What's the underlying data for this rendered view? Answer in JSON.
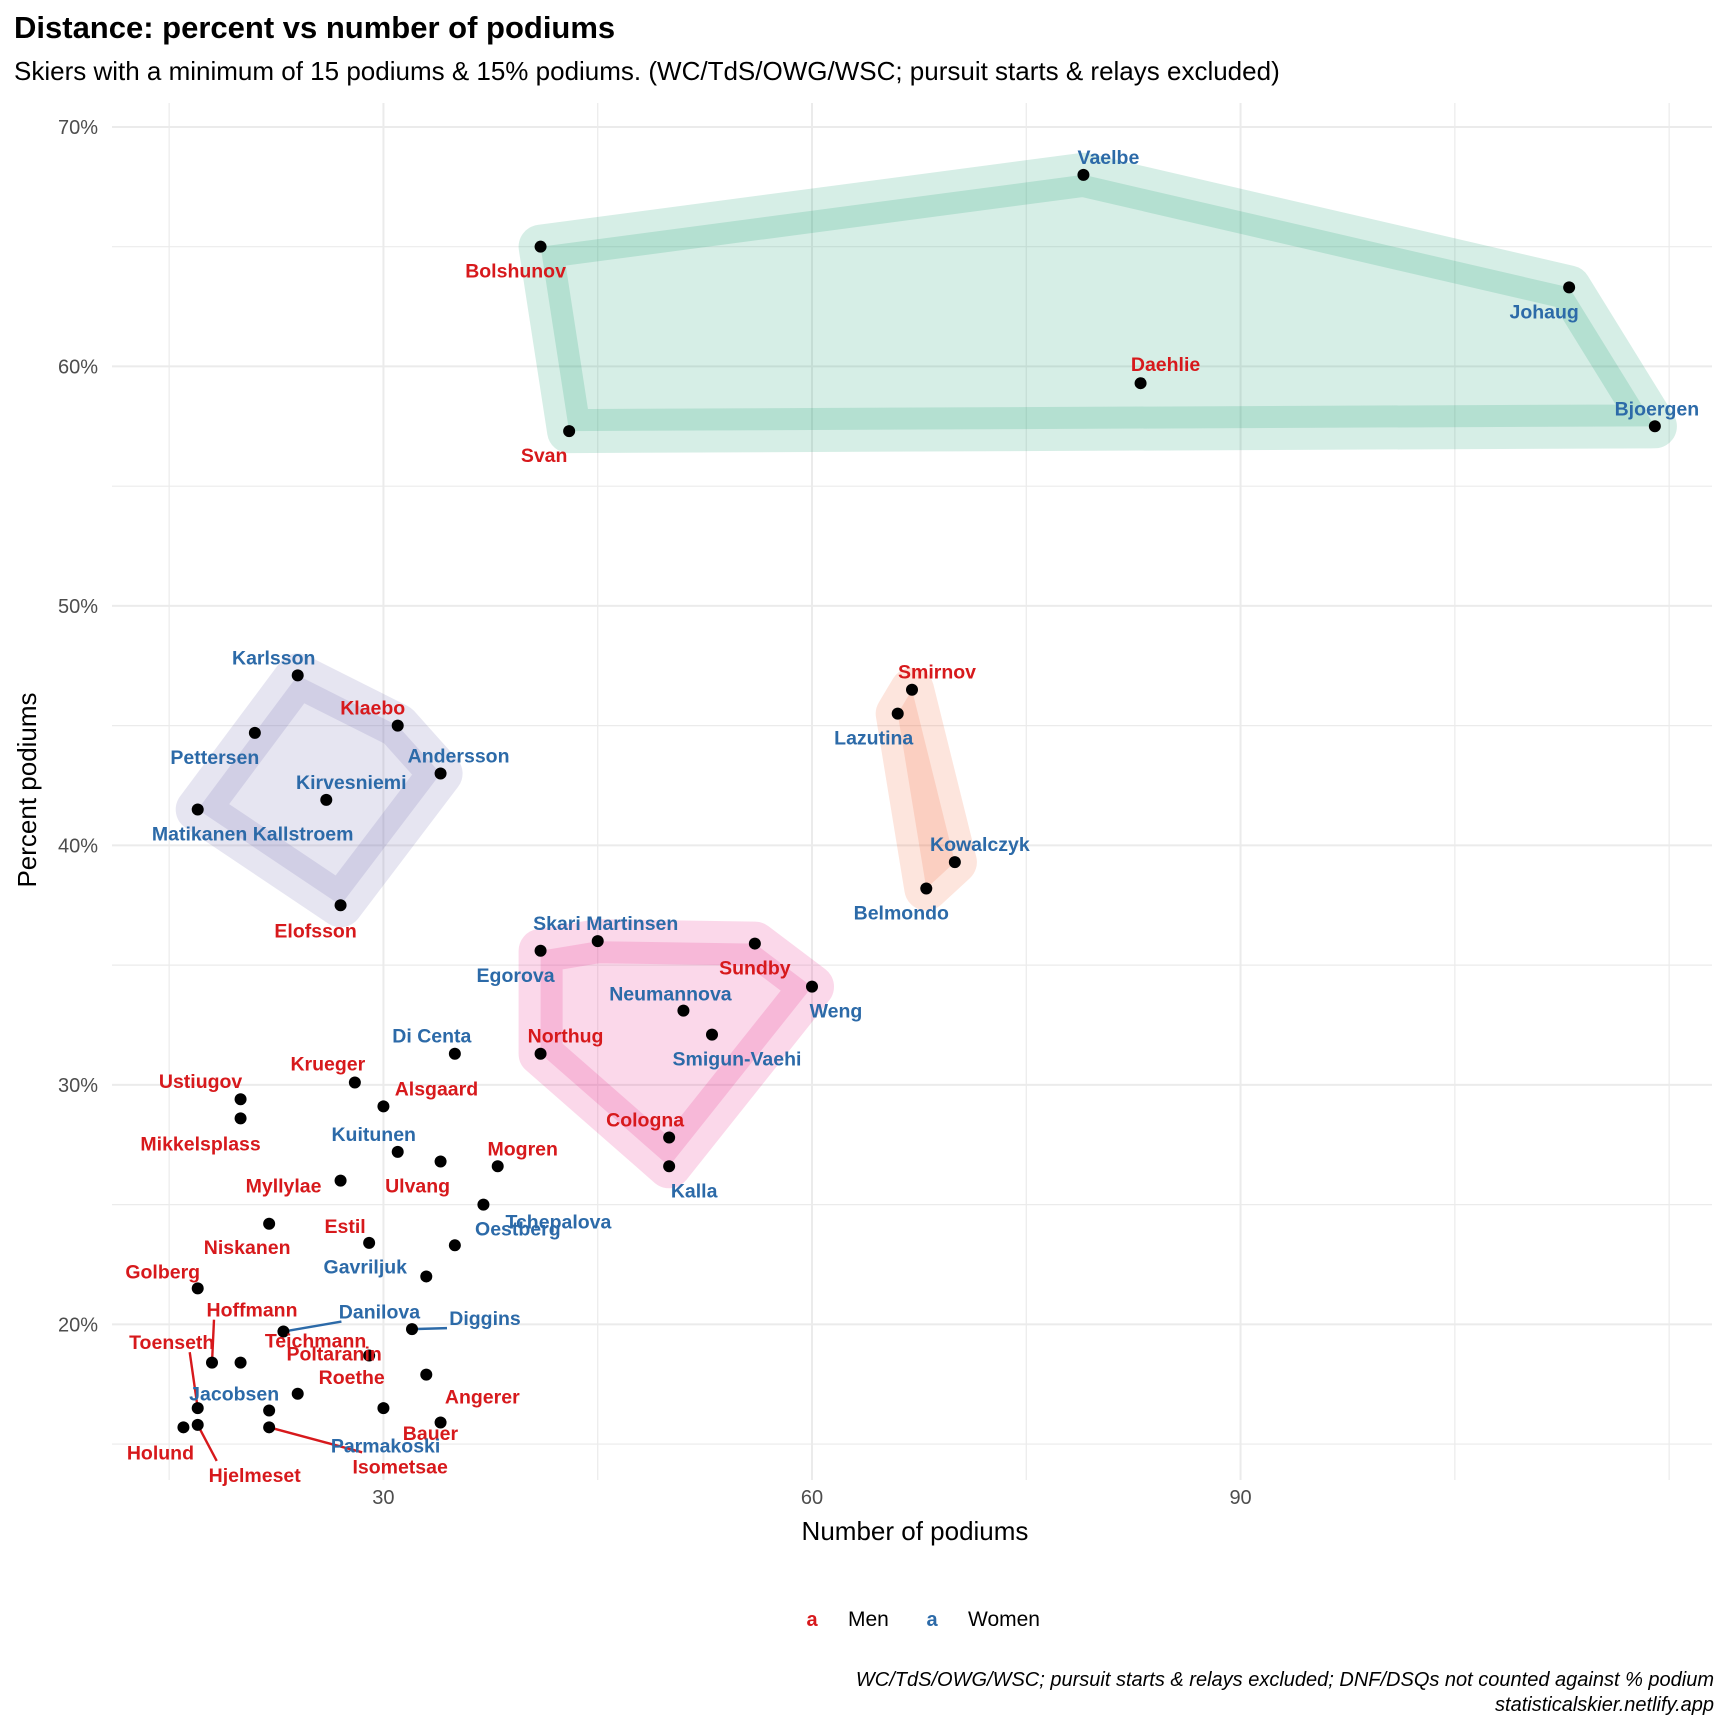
{
  "title": "Distance: percent vs number of podiums",
  "subtitle": "Skiers with a minimum of 15 podiums & 15% podiums. (WC/TdS/OWG/WSC; pursuit starts & relays excluded)",
  "caption_line1": "WC/TdS/OWG/WSC; pursuit starts & relays excluded; DNF/DSQs not counted against % podium",
  "caption_line2": "statisticalskier.netlify.app",
  "colors": {
    "Men": "#d7191c",
    "Women": "#2c6aa8"
  },
  "chart_data": {
    "type": "scatter",
    "xlabel": "Number of podiums",
    "ylabel": "Percent podiums",
    "xlim": [
      11,
      123
    ],
    "ylim": [
      13.5,
      71
    ],
    "x_ticks": [
      30,
      60,
      90
    ],
    "y_ticks": [
      20,
      30,
      40,
      50,
      60,
      70
    ],
    "y_tick_suffix": "%",
    "grid": true,
    "legend": {
      "position": "bottom",
      "key_glyph": "a",
      "entries": [
        "Men",
        "Women"
      ]
    },
    "groups": [
      {
        "fill": "#1b9e77",
        "members": [
          "Vaelbe",
          "Bolshunov",
          "Johaug",
          "Daehlie",
          "Bjoergen",
          "Svan"
        ]
      },
      {
        "fill": "#7570b3",
        "members": [
          "Karlsson",
          "Klaebo",
          "Pettersen",
          "Andersson",
          "Kirvesniemi",
          "Matikanen Kallstroem",
          "Elofsson"
        ]
      },
      {
        "fill": "#f46d43",
        "members": [
          "Smirnov",
          "Lazutina",
          "Kowalczyk",
          "Belmondo"
        ]
      },
      {
        "fill": "#e7298a",
        "members": [
          "Skari Martinsen",
          "Egorova",
          "Sundby",
          "Neumannova",
          "Weng",
          "Northug",
          "Smigun-Vaehi",
          "Cologna",
          "Kalla"
        ]
      }
    ],
    "points": [
      {
        "name": "Vaelbe",
        "gender": "Women",
        "x": 79,
        "y": 68.0
      },
      {
        "name": "Bolshunov",
        "gender": "Men",
        "x": 41,
        "y": 65.0
      },
      {
        "name": "Johaug",
        "gender": "Women",
        "x": 113,
        "y": 63.3
      },
      {
        "name": "Daehlie",
        "gender": "Men",
        "x": 83,
        "y": 59.3
      },
      {
        "name": "Bjoergen",
        "gender": "Women",
        "x": 119,
        "y": 57.5
      },
      {
        "name": "Svan",
        "gender": "Men",
        "x": 43,
        "y": 57.3
      },
      {
        "name": "Karlsson",
        "gender": "Women",
        "x": 24,
        "y": 47.1
      },
      {
        "name": "Smirnov",
        "gender": "Men",
        "x": 67,
        "y": 46.5
      },
      {
        "name": "Lazutina",
        "gender": "Women",
        "x": 66,
        "y": 45.5
      },
      {
        "name": "Klaebo",
        "gender": "Men",
        "x": 31,
        "y": 45.0
      },
      {
        "name": "Pettersen",
        "gender": "Women",
        "x": 21,
        "y": 44.7
      },
      {
        "name": "Andersson",
        "gender": "Women",
        "x": 34,
        "y": 43.0
      },
      {
        "name": "Kirvesniemi",
        "gender": "Women",
        "x": 26,
        "y": 41.9
      },
      {
        "name": "Matikanen Kallstroem",
        "gender": "Women",
        "x": 17,
        "y": 41.5
      },
      {
        "name": "Kowalczyk",
        "gender": "Women",
        "x": 70,
        "y": 39.3
      },
      {
        "name": "Belmondo",
        "gender": "Women",
        "x": 68,
        "y": 38.2
      },
      {
        "name": "Elofsson",
        "gender": "Men",
        "x": 27,
        "y": 37.5
      },
      {
        "name": "Skari Martinsen",
        "gender": "Women",
        "x": 45,
        "y": 36.0
      },
      {
        "name": "Sundby",
        "gender": "Men",
        "x": 56,
        "y": 35.9
      },
      {
        "name": "Egorova",
        "gender": "Women",
        "x": 41,
        "y": 35.6
      },
      {
        "name": "Weng",
        "gender": "Women",
        "x": 60,
        "y": 34.1
      },
      {
        "name": "Neumannova",
        "gender": "Women",
        "x": 51,
        "y": 33.1
      },
      {
        "name": "Smigun-Vaehi",
        "gender": "Women",
        "x": 53,
        "y": 32.1
      },
      {
        "name": "Northug",
        "gender": "Men",
        "x": 41,
        "y": 31.3
      },
      {
        "name": "Di Centa",
        "gender": "Women",
        "x": 35,
        "y": 31.3
      },
      {
        "name": "Krueger",
        "gender": "Men",
        "x": 28,
        "y": 30.1
      },
      {
        "name": "Ustiugov",
        "gender": "Men",
        "x": 20,
        "y": 29.4
      },
      {
        "name": "Alsgaard",
        "gender": "Men",
        "x": 30,
        "y": 29.1
      },
      {
        "name": "Mikkelsplass",
        "gender": "Men",
        "x": 20,
        "y": 28.6
      },
      {
        "name": "Cologna",
        "gender": "Men",
        "x": 50,
        "y": 27.8
      },
      {
        "name": "Kuitunen",
        "gender": "Women",
        "x": 31,
        "y": 27.2
      },
      {
        "name": "Ulvang",
        "gender": "Men",
        "x": 34,
        "y": 26.8
      },
      {
        "name": "Mogren",
        "gender": "Men",
        "x": 38,
        "y": 26.6
      },
      {
        "name": "Kalla",
        "gender": "Women",
        "x": 50,
        "y": 26.6
      },
      {
        "name": "Myllylae",
        "gender": "Men",
        "x": 27,
        "y": 26.0
      },
      {
        "name": "Tchepalova",
        "gender": "Women",
        "x": 37,
        "y": 25.0
      },
      {
        "name": "Niskanen",
        "gender": "Men",
        "x": 22,
        "y": 24.2
      },
      {
        "name": "Estil",
        "gender": "Men",
        "x": 29,
        "y": 23.4
      },
      {
        "name": "Oestberg",
        "gender": "Women",
        "x": 35,
        "y": 23.3
      },
      {
        "name": "Gavriljuk",
        "gender": "Women",
        "x": 33,
        "y": 22.0
      },
      {
        "name": "Golberg",
        "gender": "Men",
        "x": 17,
        "y": 21.5
      },
      {
        "name": "Diggins",
        "gender": "Women",
        "x": 32,
        "y": 19.8
      },
      {
        "name": "Danilova",
        "gender": "Women",
        "x": 23,
        "y": 19.7
      },
      {
        "name": "Poltaranin",
        "gender": "Men",
        "x": 29,
        "y": 18.7
      },
      {
        "name": "Hoffmann",
        "gender": "Men",
        "x": 18,
        "y": 18.4
      },
      {
        "name": "Teichmann",
        "gender": "Men",
        "x": 20,
        "y": 18.4
      },
      {
        "name": "Angerer",
        "gender": "Men",
        "x": 33,
        "y": 17.9
      },
      {
        "name": "Roethe",
        "gender": "Men",
        "x": 24,
        "y": 17.1
      },
      {
        "name": "Toenseth",
        "gender": "Men",
        "x": 17,
        "y": 16.5
      },
      {
        "name": "Jacobsen",
        "gender": "Women",
        "x": 22,
        "y": 16.4
      },
      {
        "name": "Bauer",
        "gender": "Men",
        "x": 30,
        "y": 16.5
      },
      {
        "name": "Parmakoski",
        "gender": "Women",
        "x": 34,
        "y": 15.9
      },
      {
        "name": "Holund",
        "gender": "Men",
        "x": 16,
        "y": 15.7
      },
      {
        "name": "Hjelmeset",
        "gender": "Men",
        "x": 17,
        "y": 15.8
      },
      {
        "name": "Isometsae",
        "gender": "Men",
        "x": 22,
        "y": 15.7
      }
    ]
  }
}
